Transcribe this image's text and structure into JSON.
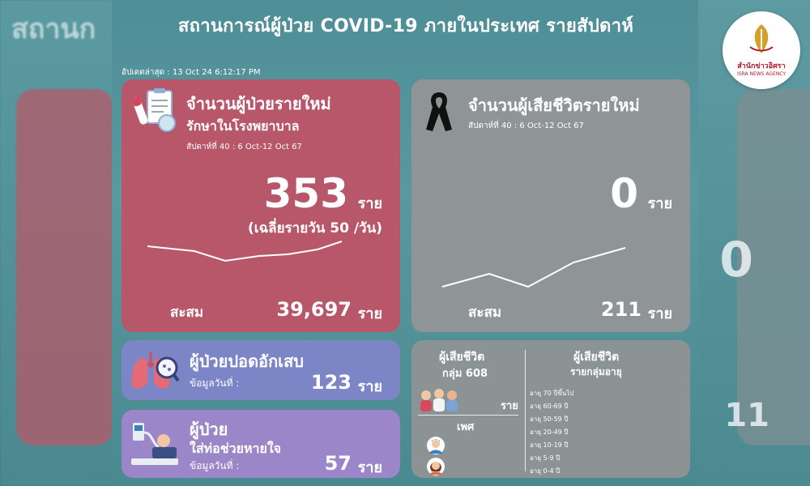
{
  "header": {
    "title": "สถานการณ์ผู้ป่วย COVID-19 ภายในประเทศ  รายสัปดาห์",
    "updated": "อัปเดตล่าสุด : 13 Oct 24 6:12:17 PM"
  },
  "new_cases": {
    "title": "จำนวนผู้ป่วยรายใหม่",
    "subtitle": "รักษาในโรงพยาบาล",
    "week": "สัปดาห์ที่ 40 : 6 Oct-12 Oct 67",
    "value": "353",
    "unit": "ราย",
    "daily_avg": "(เฉลี่ยรายวัน 50 /วัน)",
    "cumulative_label": "สะสม",
    "cumulative_value": "39,697",
    "cumulative_unit": "ราย"
  },
  "new_deaths": {
    "title": "จำนวนผู้เสียชีวิตรายใหม่",
    "week": "สัปดาห์ที่ 40 : 6 Oct-12 Oct 67",
    "value": "0",
    "unit": "ราย",
    "cumulative_label": "สะสม",
    "cumulative_value": "211",
    "cumulative_unit": "ราย"
  },
  "pneumonia": {
    "title": "ผู้ป่วยปอดอักเสบ",
    "sub": "ข้อมูลวันที่ :",
    "value": "123",
    "unit": "ราย"
  },
  "ventilator": {
    "title": "ผู้ป่วย",
    "title2": "ใส่ท่อช่วยหายใจ",
    "sub": "ข้อมูลวันที่ :",
    "value": "57",
    "unit": "ราย"
  },
  "deaths_breakdown": {
    "group_title": "ผู้เสียชีวิต",
    "group_sub": "กลุ่ม 608",
    "group_unit": "ราย",
    "sex_title": "เพศ",
    "age_title": "ผู้เสียชีวิต",
    "age_sub": "รายกลุ่มอายุ",
    "age_groups": [
      "อายุ 70 ปีขึ้นไป",
      "อายุ 60-69 ปี",
      "อายุ 50-59 ปี",
      "อายุ 20-49 ปี",
      "อายุ 10-19 ปี",
      "อายุ 5-9 ปี",
      "อายุ 0-4 ปี"
    ]
  },
  "logo": {
    "name": "สำนักข่าวอิศรา",
    "sub": "ISRA NEWS AGENCY"
  },
  "colors": {
    "cases_card": "#b8566a",
    "deaths_card": "#8f9596",
    "pneumonia_card": "#7c86c6",
    "ventilator_card": "#9b86c9",
    "background": "#4e8e96"
  }
}
